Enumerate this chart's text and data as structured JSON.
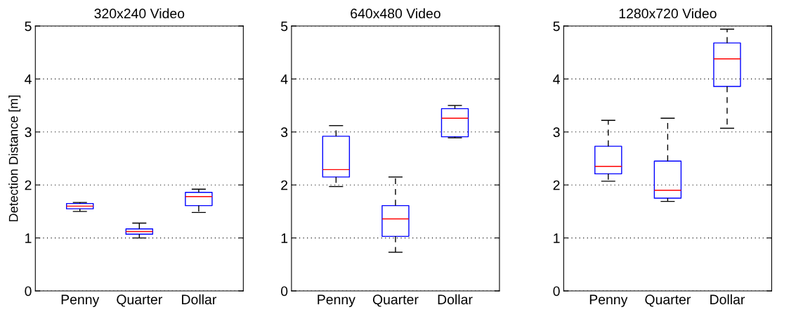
{
  "chart_data": [
    {
      "type": "box",
      "title": "320x240 Video",
      "ylabel": "Detection Distance [m]",
      "categories": [
        "Penny",
        "Quarter",
        "Dollar"
      ],
      "ylim": [
        0,
        5
      ],
      "yticks": [
        0,
        1,
        2,
        3,
        4,
        5
      ],
      "grid": "y",
      "line_style": "dashed",
      "series": [
        {
          "color": "#0000ff",
          "boxes": [
            {
              "low": 1.5,
              "q1": 1.55,
              "median": 1.6,
              "q3": 1.65,
              "high": 1.67
            },
            {
              "low": 1.0,
              "q1": 1.07,
              "median": 1.12,
              "q3": 1.17,
              "high": 1.28
            },
            {
              "low": 1.48,
              "q1": 1.61,
              "median": 1.78,
              "q3": 1.86,
              "high": 1.92
            }
          ]
        }
      ]
    },
    {
      "type": "box",
      "title": "640x480 Video",
      "categories": [
        "Penny",
        "Quarter",
        "Dollar"
      ],
      "ylim": [
        0,
        5
      ],
      "yticks": [
        0,
        1,
        2,
        3,
        4,
        5
      ],
      "grid": "y",
      "line_style": "dashed",
      "series": [
        {
          "color": "#0000ff",
          "boxes": [
            {
              "low": 1.97,
              "q1": 2.15,
              "median": 2.29,
              "q3": 2.92,
              "high": 3.12
            },
            {
              "low": 0.73,
              "q1": 1.03,
              "median": 1.36,
              "q3": 1.61,
              "high": 2.15
            },
            {
              "low": 2.89,
              "q1": 2.91,
              "median": 3.26,
              "q3": 3.44,
              "high": 3.5
            }
          ]
        }
      ]
    },
    {
      "type": "box",
      "title": "1280x720 Video",
      "categories": [
        "Penny",
        "Quarter",
        "Dollar"
      ],
      "ylim": [
        0,
        5
      ],
      "yticks": [
        0,
        1,
        2,
        3,
        4,
        5
      ],
      "grid": "y",
      "line_style": "dashed",
      "series": [
        {
          "color": "#0000ff",
          "boxes": [
            {
              "low": 2.07,
              "q1": 2.21,
              "median": 2.35,
              "q3": 2.73,
              "high": 3.22
            },
            {
              "low": 1.69,
              "q1": 1.75,
              "median": 1.9,
              "q3": 2.45,
              "high": 3.26
            },
            {
              "low": 3.07,
              "q1": 3.86,
              "median": 4.38,
              "q3": 4.68,
              "high": 4.94
            }
          ]
        }
      ]
    }
  ]
}
